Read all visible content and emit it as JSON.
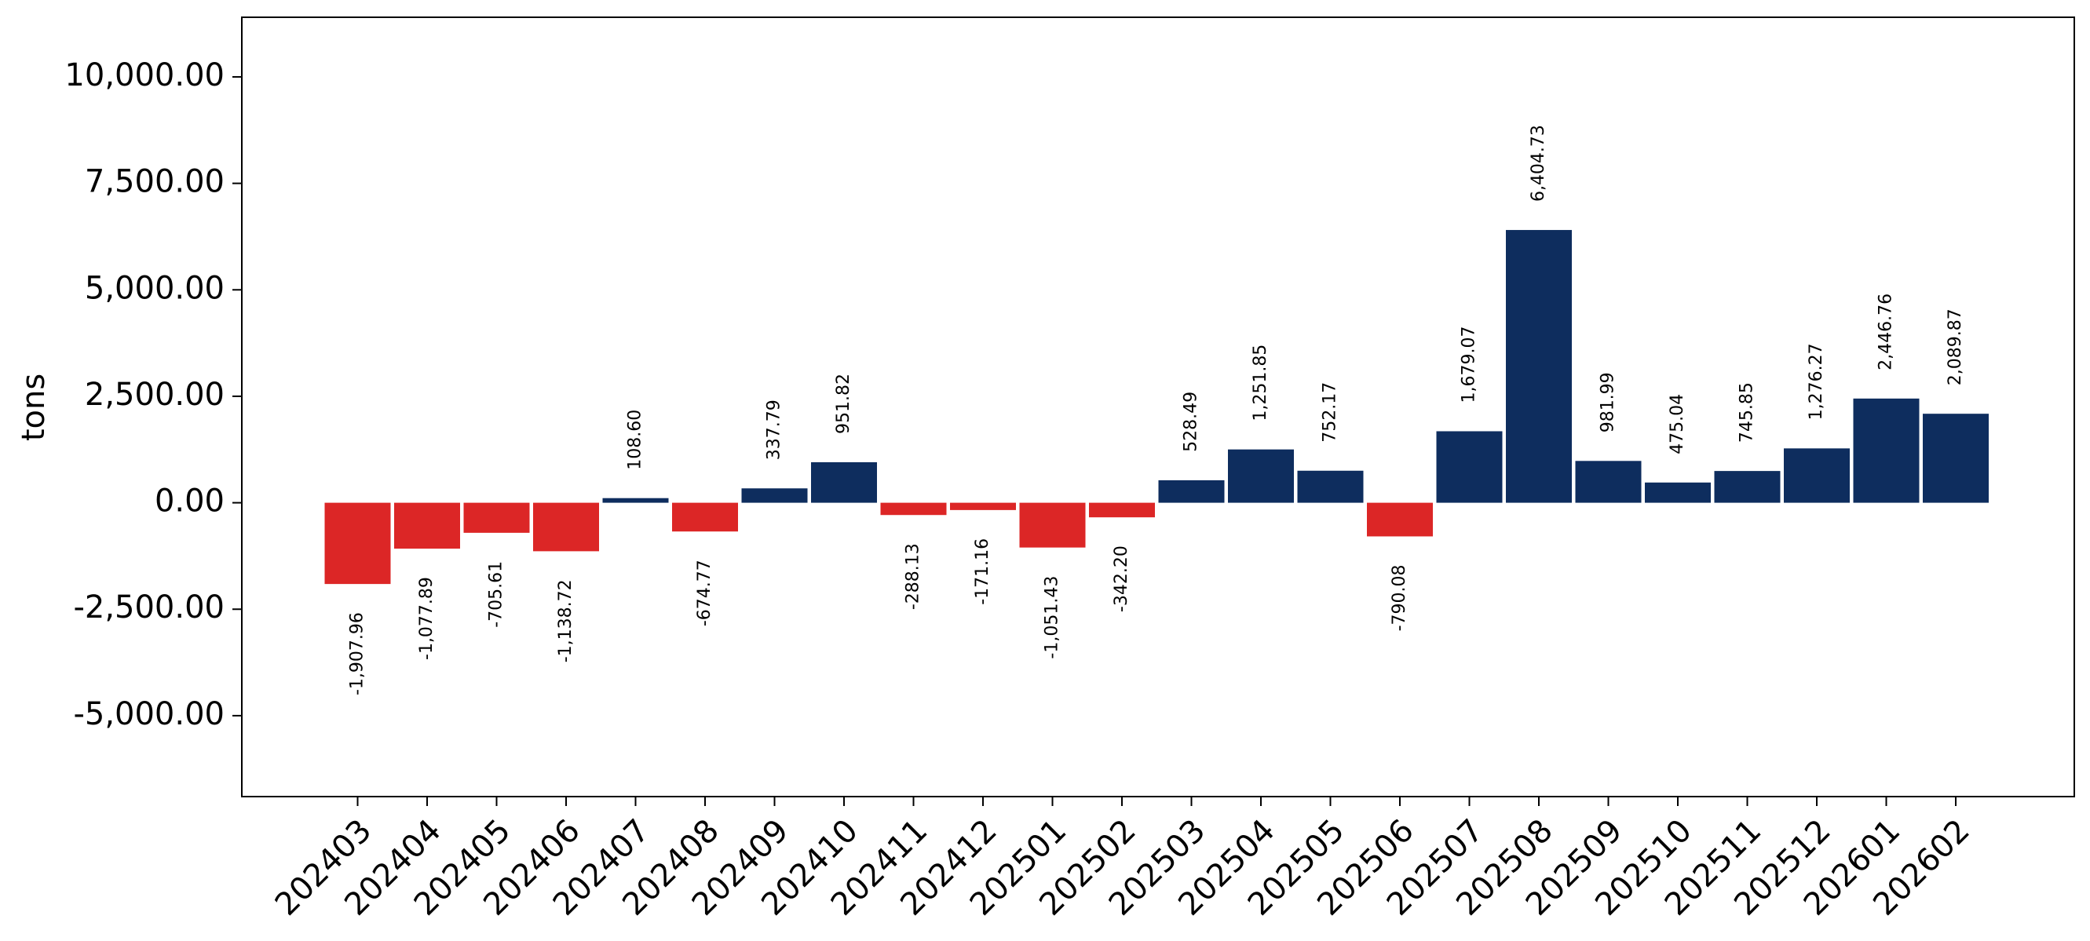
{
  "chart_data": {
    "type": "bar",
    "title": "",
    "xlabel": "",
    "ylabel": "tons",
    "ylim": [
      -6900,
      11400
    ],
    "yticks": [
      -5000,
      -2500,
      0,
      2500,
      5000,
      7500,
      10000
    ],
    "ytick_labels": [
      "-5,000.00",
      "-2,500.00",
      "0.00",
      "2,500.00",
      "5,000.00",
      "7,500.00",
      "10,000.00"
    ],
    "grid": false,
    "categories": [
      "202403",
      "202404",
      "202405",
      "202406",
      "202407",
      "202408",
      "202409",
      "202410",
      "202411",
      "202412",
      "202501",
      "202502",
      "202503",
      "202504",
      "202505",
      "202506",
      "202507",
      "202508",
      "202509",
      "202510",
      "202511",
      "202512",
      "202601",
      "202602"
    ],
    "values": [
      -1907.96,
      -1077.89,
      -705.61,
      -1138.72,
      108.6,
      -674.77,
      337.79,
      951.82,
      -288.13,
      -171.16,
      -1051.43,
      -342.2,
      528.49,
      1251.85,
      752.17,
      -790.08,
      1679.07,
      6404.73,
      981.99,
      475.04,
      745.85,
      1276.27,
      2446.76,
      2089.87
    ],
    "data_labels": [
      "-1,907.96",
      "-1,077.89",
      "-705.61",
      "-1,138.72",
      "108.60",
      "-674.77",
      "337.79",
      "951.82",
      "-288.13",
      "-171.16",
      "-1,051.43",
      "-342.20",
      "528.49",
      "1,251.85",
      "752.17",
      "-790.08",
      "1,679.07",
      "6,404.73",
      "981.99",
      "475.04",
      "745.85",
      "1,276.27",
      "2,446.76",
      "2,089.87"
    ],
    "colors": {
      "positive": "#0e2d5e",
      "negative": "#dc2626"
    }
  }
}
